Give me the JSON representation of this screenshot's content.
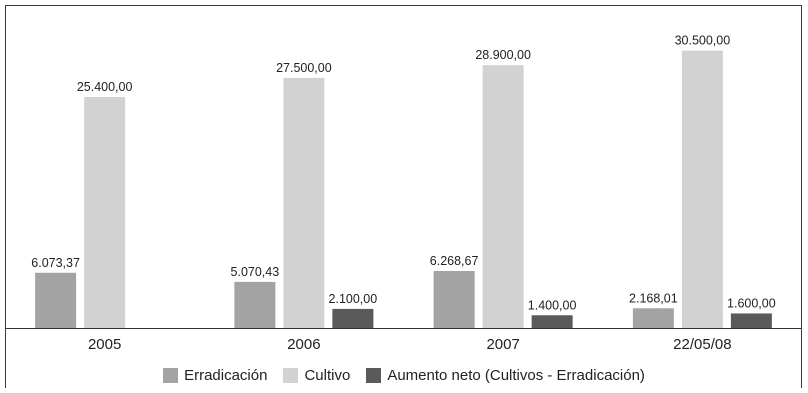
{
  "chart_data": {
    "type": "bar",
    "categories": [
      "2005",
      "2006",
      "2007",
      "22/05/08"
    ],
    "series": [
      {
        "name": "Erradicación",
        "color": "#a3a3a3",
        "values": [
          6073.37,
          5070.43,
          6268.67,
          2168.01
        ],
        "labels": [
          "6.073,37",
          "5.070,43",
          "6.268,67",
          "2.168,01"
        ]
      },
      {
        "name": "Cultivo",
        "color": "#d2d2d2",
        "values": [
          25400,
          27500,
          28900,
          30500
        ],
        "labels": [
          "25.400,00",
          "27.500,00",
          "28.900,00",
          "30.500,00"
        ]
      },
      {
        "name": "Aumento neto (Cultivos - Erradicación)",
        "color": "#5a5a5a",
        "values": [
          null,
          2100,
          1400,
          1600
        ],
        "labels": [
          "",
          "2.100,00",
          "1.400,00",
          "1.600,00"
        ]
      }
    ],
    "ylim": [
      0,
      32000
    ],
    "grid": false,
    "legend_position": "bottom"
  }
}
